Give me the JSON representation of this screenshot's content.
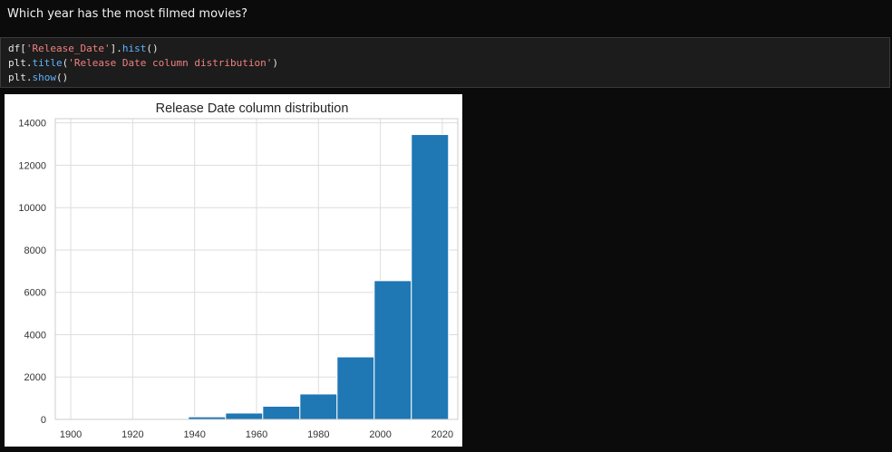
{
  "question": "Which year has the most filmed movies?",
  "code": {
    "line1": {
      "a": "df[",
      "b": "'Release_Date'",
      "c": "].",
      "d": "hist",
      "e": "()"
    },
    "line2": {
      "a": "plt.",
      "b": "title",
      "c": "(",
      "d": "'Release Date column distribution'",
      "e": ")"
    },
    "line3": {
      "a": "plt.",
      "b": "show",
      "c": "()"
    }
  },
  "colors": {
    "bar": "#1f77b4",
    "string": "#f08080",
    "function": "#5fb4ff"
  },
  "chart_data": {
    "type": "bar",
    "title": "Release Date column distribution",
    "xlabel": "",
    "ylabel": "",
    "grid": true,
    "xlim": [
      1895,
      2025
    ],
    "ylim": [
      0,
      14200
    ],
    "x_ticks": [
      "1900",
      "1920",
      "1940",
      "1960",
      "1980",
      "2000",
      "2020"
    ],
    "x_tick_values": [
      1900,
      1920,
      1940,
      1960,
      1980,
      2000,
      2020
    ],
    "y_ticks": [
      "0",
      "2000",
      "4000",
      "6000",
      "8000",
      "10000",
      "12000",
      "14000"
    ],
    "y_tick_values": [
      0,
      2000,
      4000,
      6000,
      8000,
      10000,
      12000,
      14000
    ],
    "bins": [
      {
        "start": 1902,
        "end": 1914,
        "value": 3
      },
      {
        "start": 1914,
        "end": 1926,
        "value": 10
      },
      {
        "start": 1926,
        "end": 1938,
        "value": 40
      },
      {
        "start": 1938,
        "end": 1950,
        "value": 120
      },
      {
        "start": 1950,
        "end": 1962,
        "value": 300
      },
      {
        "start": 1962,
        "end": 1974,
        "value": 620
      },
      {
        "start": 1974,
        "end": 1986,
        "value": 1200
      },
      {
        "start": 1986,
        "end": 1998,
        "value": 2950
      },
      {
        "start": 1998,
        "end": 2010,
        "value": 6550
      },
      {
        "start": 2010,
        "end": 2022,
        "value": 13450
      }
    ]
  }
}
